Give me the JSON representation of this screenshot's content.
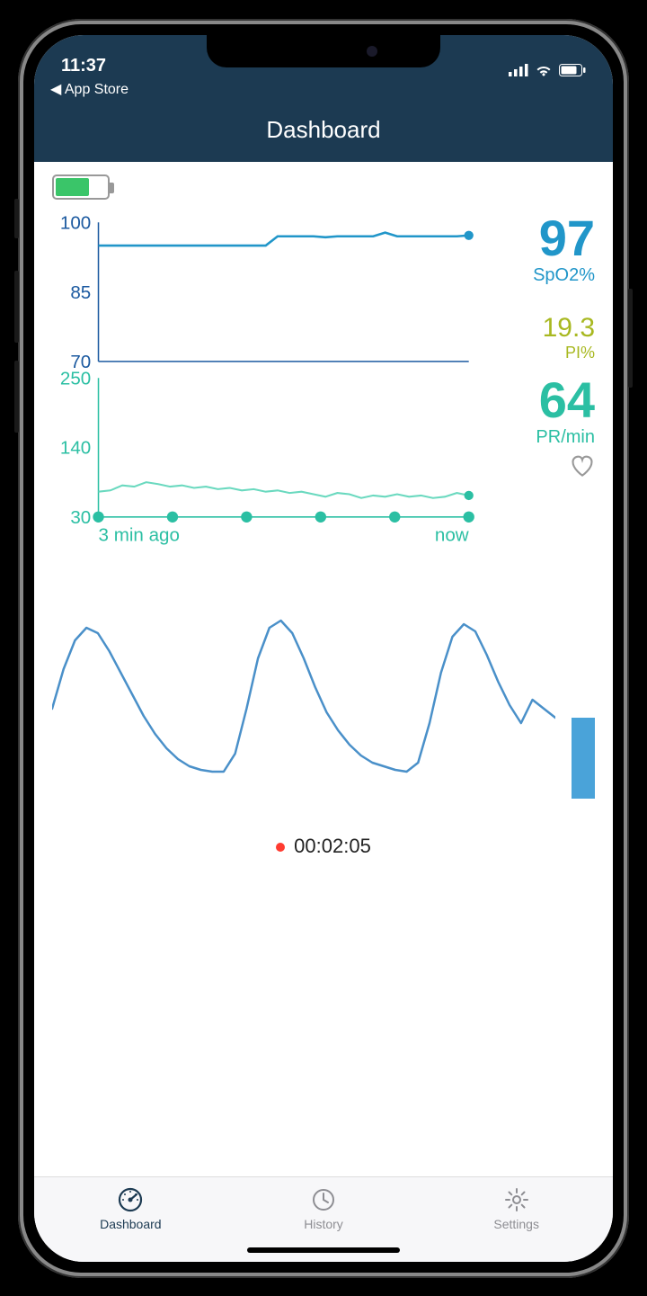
{
  "status_bar": {
    "time": "11:37",
    "back_label": "◀ App Store",
    "signal_bars": 4,
    "wifi": true,
    "battery_pct": 78
  },
  "header": {
    "title": "Dashboard"
  },
  "device_battery": {
    "pct": 62,
    "fill_color": "#3ac569",
    "border_color": "#999"
  },
  "spo2": {
    "value": "97",
    "unit": "SpO2%",
    "color": "#2196c9",
    "chart": {
      "type": "line",
      "ylim": [
        70,
        100
      ],
      "yticks": [
        100,
        85,
        70
      ],
      "line_color": "#2196c9",
      "line_width": 2.5,
      "axis_color": "#1c5aa0",
      "tick_fontsize": 20,
      "data": [
        95,
        95,
        95,
        95,
        95,
        95,
        95,
        95,
        95,
        95,
        95,
        95,
        95,
        95,
        95,
        97,
        97,
        97,
        97,
        96.8,
        97,
        97,
        97,
        97,
        97.8,
        97,
        97,
        97,
        97,
        97,
        97,
        97.2
      ]
    }
  },
  "pi": {
    "value": "19.3",
    "unit": "PI%",
    "color": "#a8b820"
  },
  "pr": {
    "value": "64",
    "unit": "PR/min",
    "color": "#2bbfa3",
    "chart": {
      "type": "line",
      "ylim": [
        30,
        250
      ],
      "yticks": [
        250,
        140,
        30
      ],
      "line_color": "#6ad9bf",
      "dot_color": "#2bbfa3",
      "line_width": 2,
      "axis_color": "#2bbfa3",
      "tick_fontsize": 20,
      "x_label_left": "3  min ago",
      "x_label_right": "now",
      "x_dots": 6,
      "data": [
        70,
        72,
        80,
        78,
        85,
        82,
        78,
        80,
        76,
        78,
        74,
        76,
        72,
        74,
        70,
        72,
        68,
        70,
        66,
        62,
        68,
        66,
        60,
        64,
        62,
        66,
        62,
        64,
        60,
        62,
        68,
        64
      ]
    }
  },
  "waveform": {
    "type": "line",
    "color": "#4a90c9",
    "line_width": 2.5,
    "bar_color": "#4aa3d9",
    "data": [
      0.5,
      0.72,
      0.88,
      0.95,
      0.92,
      0.82,
      0.7,
      0.58,
      0.46,
      0.36,
      0.28,
      0.22,
      0.18,
      0.16,
      0.15,
      0.15,
      0.25,
      0.5,
      0.78,
      0.95,
      0.99,
      0.92,
      0.78,
      0.62,
      0.48,
      0.38,
      0.3,
      0.24,
      0.2,
      0.18,
      0.16,
      0.15,
      0.2,
      0.42,
      0.7,
      0.9,
      0.97,
      0.93,
      0.8,
      0.65,
      0.52,
      0.42,
      0.55,
      0.5,
      0.45
    ]
  },
  "recording": {
    "elapsed": "00:02:05",
    "dot_color": "#ff3b30"
  },
  "tabs": {
    "items": [
      {
        "label": "Dashboard",
        "icon": "gauge",
        "active": true
      },
      {
        "label": "History",
        "icon": "clock",
        "active": false
      },
      {
        "label": "Settings",
        "icon": "gear",
        "active": false
      }
    ],
    "active_color": "#1c3a52",
    "inactive_color": "#8e8e93",
    "background": "#f7f7f9"
  },
  "colors": {
    "header_bg": "#1c3a52",
    "screen_bg": "#ffffff",
    "frame_bg": "#000000"
  }
}
